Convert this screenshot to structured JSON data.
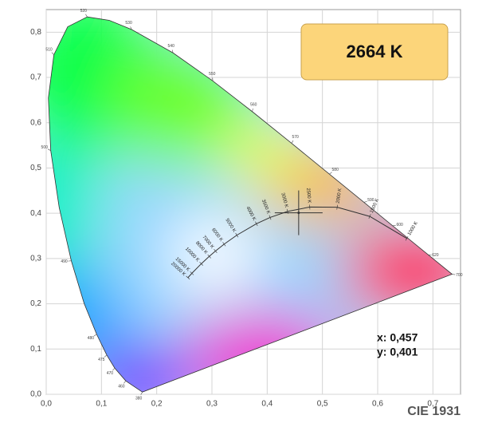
{
  "chart_data": {
    "type": "chromaticity",
    "title": "CIE 1931",
    "xlim": [
      0,
      0.75
    ],
    "ylim": [
      0,
      0.85
    ],
    "xticks": [
      {
        "value": 0,
        "label": "0,0"
      },
      {
        "value": 0.1,
        "label": "0,1"
      },
      {
        "value": 0.2,
        "label": "0,2"
      },
      {
        "value": 0.3,
        "label": "0,3"
      },
      {
        "value": 0.4,
        "label": "0,4"
      },
      {
        "value": 0.5,
        "label": "0,5"
      },
      {
        "value": 0.6,
        "label": "0,6"
      },
      {
        "value": 0.7,
        "label": "0,7"
      }
    ],
    "yticks": [
      {
        "value": 0,
        "label": "0,0"
      },
      {
        "value": 0.1,
        "label": "0,1"
      },
      {
        "value": 0.2,
        "label": "0,2"
      },
      {
        "value": 0.3,
        "label": "0,3"
      },
      {
        "value": 0.4,
        "label": "0,4"
      },
      {
        "value": 0.5,
        "label": "0,5"
      },
      {
        "value": 0.6,
        "label": "0,6"
      },
      {
        "value": 0.7,
        "label": "0,7"
      },
      {
        "value": 0.8,
        "label": "0,8"
      }
    ],
    "grid": true,
    "spectral_locus": {
      "x": [
        0.1741,
        0.144,
        0.1241,
        0.1096,
        0.0913,
        0.0687,
        0.0454,
        0.0235,
        0.0082,
        0.0039,
        0.0139,
        0.0389,
        0.0743,
        0.1142,
        0.1547,
        0.2296,
        0.3016,
        0.3731,
        0.4441,
        0.5125,
        0.5752,
        0.627,
        0.6915,
        0.7347
      ],
      "y": [
        0.005,
        0.0297,
        0.0578,
        0.0868,
        0.1327,
        0.2007,
        0.295,
        0.4127,
        0.5384,
        0.6548,
        0.7502,
        0.812,
        0.8338,
        0.8262,
        0.8059,
        0.7543,
        0.6923,
        0.6245,
        0.5547,
        0.4866,
        0.4242,
        0.3725,
        0.3083,
        0.2653
      ],
      "labels": [
        "380",
        "460",
        "470",
        "475",
        "480",
        null,
        "490",
        null,
        "500",
        null,
        "510",
        null,
        "520",
        null,
        "530",
        "540",
        "550",
        "560",
        "570",
        "580",
        "590",
        "600",
        "620",
        "700"
      ]
    },
    "planckian_locus": {
      "x": [
        0.6528,
        0.5857,
        0.5267,
        0.477,
        0.4369,
        0.4053,
        0.3805,
        0.3451,
        0.3221,
        0.3064,
        0.2952,
        0.2807,
        0.2637,
        0.2565
      ],
      "y": [
        0.3444,
        0.3931,
        0.4133,
        0.4137,
        0.4041,
        0.3907,
        0.3768,
        0.3516,
        0.3318,
        0.3166,
        0.3048,
        0.2884,
        0.2674,
        0.2577
      ],
      "labels": [
        "1000 K",
        "1500 K",
        "2000 K",
        "2500 K",
        "3000 K",
        "3500 K",
        "4000 K",
        "5000 K",
        "6000 K",
        "7000 K",
        "8000 K",
        "10000 K",
        "15000 K",
        "20000 K"
      ]
    },
    "point": {
      "x": 0.457,
      "y": 0.401,
      "x_label": "x: 0,457",
      "y_label": "y: 0,401"
    },
    "cct_label": "2664 K"
  }
}
